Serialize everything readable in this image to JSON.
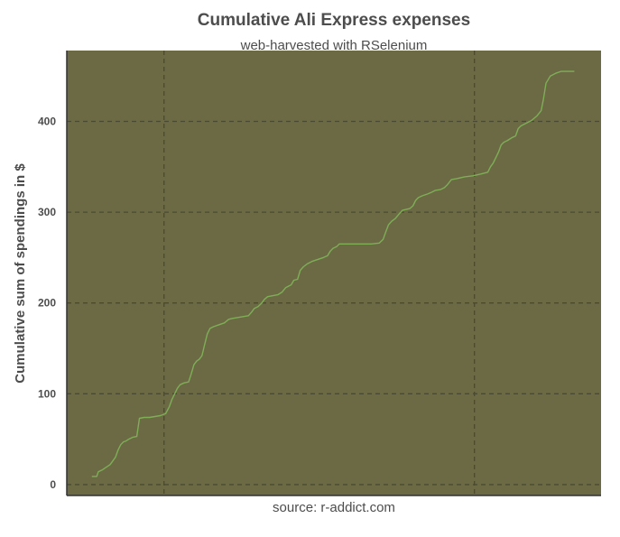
{
  "chart_data": {
    "type": "line",
    "title": "Cumulative Ali Express expenses",
    "subtitle": "web-harvested with RSelenium",
    "xlabel": "source: r-addict.com",
    "ylabel": "Cumulative sum of spendings in $",
    "xlim": [
      0,
      100
    ],
    "ylim": [
      -12,
      478
    ],
    "y_ticks": [
      0,
      100,
      200,
      300,
      400
    ],
    "x_gridlines": [
      18.2,
      76.3
    ],
    "grid": true,
    "colors": {
      "panel_background": "#6b6a45",
      "line": "#7fae57",
      "grid": "#4a4a32",
      "text": "#4d4d4d"
    },
    "series": [
      {
        "values": [
          [
            4.7,
            9
          ],
          [
            5.6,
            9
          ],
          [
            5.9,
            14
          ],
          [
            6.6,
            16
          ],
          [
            7.1,
            18
          ],
          [
            7.6,
            20
          ],
          [
            8.1,
            22
          ],
          [
            8.6,
            26
          ],
          [
            9.1,
            30
          ],
          [
            9.6,
            38
          ],
          [
            10.1,
            44
          ],
          [
            10.6,
            47
          ],
          [
            11.1,
            48
          ],
          [
            11.6,
            50
          ],
          [
            12.3,
            52
          ],
          [
            13.1,
            53
          ],
          [
            13.6,
            73
          ],
          [
            14.5,
            74
          ],
          [
            15.5,
            74
          ],
          [
            16.5,
            75
          ],
          [
            17.5,
            76
          ],
          [
            18.5,
            78
          ],
          [
            19.2,
            86
          ],
          [
            19.7,
            94
          ],
          [
            20.2,
            100
          ],
          [
            20.7,
            106
          ],
          [
            21.2,
            110
          ],
          [
            22.0,
            112
          ],
          [
            22.8,
            113
          ],
          [
            23.3,
            122
          ],
          [
            23.8,
            132
          ],
          [
            24.3,
            136
          ],
          [
            24.8,
            138
          ],
          [
            25.3,
            142
          ],
          [
            25.8,
            154
          ],
          [
            26.3,
            166
          ],
          [
            26.8,
            172
          ],
          [
            27.5,
            174
          ],
          [
            28.5,
            176
          ],
          [
            29.5,
            178
          ],
          [
            30.3,
            182
          ],
          [
            31.0,
            183
          ],
          [
            32.0,
            184
          ],
          [
            33.0,
            185
          ],
          [
            34.0,
            186
          ],
          [
            34.6,
            190
          ],
          [
            35.1,
            194
          ],
          [
            35.8,
            196
          ],
          [
            36.5,
            200
          ],
          [
            37.0,
            204
          ],
          [
            37.6,
            207
          ],
          [
            38.5,
            208
          ],
          [
            39.5,
            209
          ],
          [
            40.3,
            212
          ],
          [
            41.0,
            217
          ],
          [
            42.0,
            220
          ],
          [
            42.5,
            225
          ],
          [
            43.2,
            226
          ],
          [
            43.7,
            236
          ],
          [
            44.3,
            240
          ],
          [
            45.0,
            243
          ],
          [
            46.0,
            246
          ],
          [
            47.0,
            248
          ],
          [
            48.0,
            250
          ],
          [
            48.8,
            252
          ],
          [
            49.3,
            257
          ],
          [
            49.8,
            260
          ],
          [
            50.5,
            262
          ],
          [
            51.0,
            265
          ],
          [
            53.0,
            265
          ],
          [
            55.0,
            265
          ],
          [
            57.0,
            265
          ],
          [
            58.5,
            266
          ],
          [
            59.2,
            270
          ],
          [
            59.7,
            278
          ],
          [
            60.2,
            286
          ],
          [
            60.8,
            290
          ],
          [
            61.5,
            293
          ],
          [
            62.2,
            298
          ],
          [
            62.8,
            302
          ],
          [
            63.5,
            303
          ],
          [
            64.2,
            304
          ],
          [
            64.8,
            307
          ],
          [
            65.3,
            313
          ],
          [
            65.8,
            316
          ],
          [
            66.5,
            318
          ],
          [
            67.5,
            320
          ],
          [
            68.3,
            322
          ],
          [
            69.0,
            324
          ],
          [
            70.0,
            325
          ],
          [
            70.7,
            327
          ],
          [
            71.2,
            330
          ],
          [
            72.0,
            336
          ],
          [
            73.0,
            337
          ],
          [
            74.5,
            339
          ],
          [
            76.0,
            340
          ],
          [
            77.5,
            342
          ],
          [
            78.8,
            344
          ],
          [
            79.3,
            350
          ],
          [
            79.8,
            354
          ],
          [
            80.3,
            360
          ],
          [
            80.8,
            366
          ],
          [
            81.3,
            374
          ],
          [
            81.8,
            377
          ],
          [
            82.5,
            379
          ],
          [
            83.3,
            382
          ],
          [
            84.0,
            384
          ],
          [
            84.5,
            392
          ],
          [
            85.0,
            395
          ],
          [
            86.0,
            398
          ],
          [
            87.0,
            401
          ],
          [
            88.0,
            406
          ],
          [
            88.8,
            412
          ],
          [
            89.2,
            424
          ],
          [
            89.7,
            442
          ],
          [
            90.5,
            450
          ],
          [
            91.5,
            453
          ],
          [
            92.5,
            455
          ],
          [
            95.0,
            455
          ]
        ]
      }
    ]
  }
}
